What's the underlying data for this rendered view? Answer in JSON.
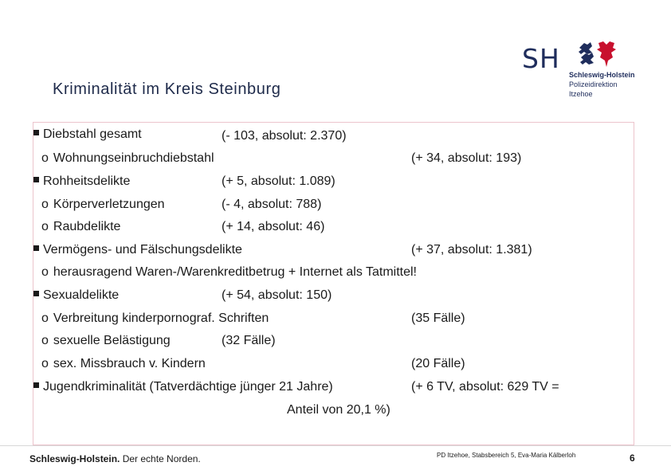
{
  "header": {
    "title": "Kriminalität im Kreis Steinburg",
    "logo": {
      "mark": "SH",
      "line1": "Schleswig-Holstein",
      "line2": "Polizeidirektion",
      "line3": "Itzehoe",
      "colors": {
        "navy": "#1f2d5c",
        "red": "#c8102e"
      }
    }
  },
  "items": [
    {
      "level": 1,
      "label": "Diebstahl gesamt",
      "value": "(- 103, absolut: 2.370)"
    },
    {
      "level": 2,
      "label": "Wohnungseinbruchdiebstahl",
      "value": "(+ 34, absolut: 193)"
    },
    {
      "level": 1,
      "label": "Rohheitsdelikte",
      "value": "(+ 5, absolut: 1.089)"
    },
    {
      "level": 2,
      "label": "Körperverletzungen",
      "value": "(- 4, absolut: 788)"
    },
    {
      "level": 2,
      "label": "Raubdelikte",
      "value": "(+ 14, absolut: 46)"
    },
    {
      "level": 1,
      "label": "Vermögens- und Fälschungsdelikte",
      "value": "(+ 37, absolut: 1.381)"
    },
    {
      "level": 2,
      "label": "herausragend Waren-/Warenkreditbetrug + Internet als Tatmittel!",
      "value": ""
    },
    {
      "level": 1,
      "label": "Sexualdelikte",
      "value": "(+ 54, absolut: 150)"
    },
    {
      "level": 2,
      "label": "Verbreitung kinderpornograf. Schriften",
      "value": "(35 Fälle)"
    },
    {
      "level": 2,
      "label": "sexuelle Belästigung",
      "value": "(32 Fälle)"
    },
    {
      "level": 2,
      "label": "sex. Missbrauch v. Kindern",
      "value": "(20 Fälle)"
    },
    {
      "level": 1,
      "label": "Jugendkriminalität (Tatverdächtige jünger 21 Jahre)",
      "value": "(+ 6 TV, absolut: 629 TV =",
      "value_cont": "Anteil von 20,1 %)"
    }
  ],
  "markers": {
    "square": "square-bullet",
    "circle": "o"
  },
  "footer": {
    "brand_bold": "Schleswig-Holstein.",
    "brand_rest": " Der echte Norden.",
    "credit": "PD Itzehoe, Stabsbereich 5, Eva-Maria Kälberloh",
    "page": "6"
  }
}
